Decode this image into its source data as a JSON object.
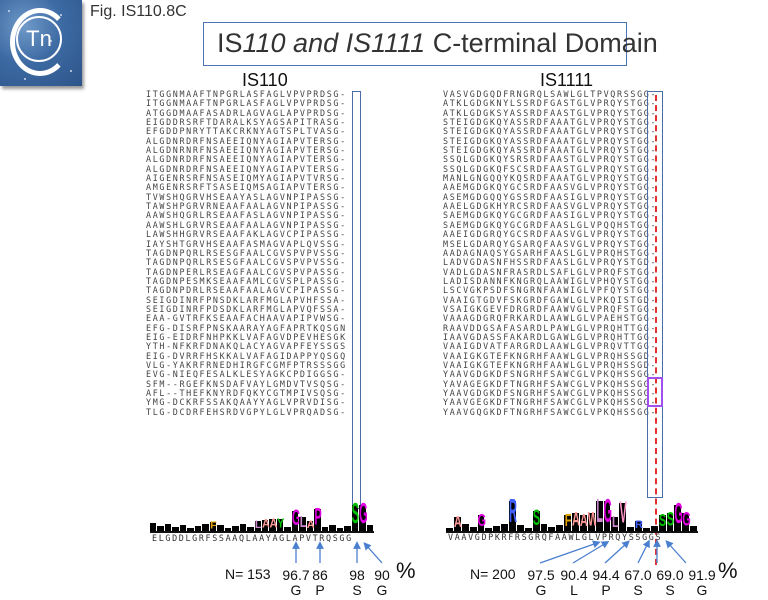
{
  "header": {
    "logo_text": "Tn",
    "figure_label": "Fig. IS110.8C",
    "title_parts": [
      {
        "text": "IS",
        "italic": false
      },
      {
        "text": "110 and IS1111",
        "italic": true
      },
      {
        "text": " C-terminal Domain",
        "italic": false
      }
    ]
  },
  "colors": {
    "box_blue": "#4a6da8",
    "box_purple": "#a24ff0",
    "dash_red": "#e03030",
    "arrow_blue": "#4a7fd0",
    "title_border": "#4a73b8"
  },
  "is110": {
    "title": "IS110",
    "sequences": [
      "ITGGNMAAFTNPGRLASFAGLVPVPRDSG-",
      "ITGGNMAAFTNPGRLASFAGLVPVPRDSG-",
      "ATGGDMAAFASADRLAGVAGLAPVPRDSG-",
      "EIGDDRSRFTDARALKSYAGSAPITRASG-",
      "EFGDDPNRYTTAKCRKNYAGTSPLTVASG-",
      "ALGDNRDRFNSAEEIQNYAGIAPVTERSG-",
      "ALGDNRNRFNSAEEIQNYAGIAPVTERSG-",
      "ALGDNRDRFNSAEEIQNYAGIAPVTERSG-",
      "ALGDNRDRFNSAEEIQNYAGIAPVTERSG-",
      "AIGENRSRFNSASEIQMYAGIAPVTVRSG-",
      "AMGENRSRFTSASEIQMSAGIAPVTERSG-",
      "TVWSHQGRVHSEAAYASLAGVNPIPASSG-",
      "TAWSHPGRVRNEAAFAALAGVNPIPASSG-",
      "AAWSHQGRLRSEAAFASLAGVNPIPASSG-",
      "AAWSHLGRVRSEAAFAALAGVNPIPASSG-",
      "LAWSHHGRVRSEAAFAKLAGVCPIPASSG-",
      "IAYSHTGRVHSEAAFASMAGVAPLQVSSG-",
      "TAGDNPQRLRSESGFAALCGVSPVPVSSG-",
      "TAGDNPQRLRSESGFAALCGVSPVPVSSG-",
      "TAGDNPERLRSEAGFAALCGVSPVPASSG-",
      "TAGDNPESMKSEAAFAMLCGVSPLPASSG-",
      "TAGDNPDRLRSEAAFAALAGVCPIPASSG-",
      "SEIGDINRFPNSDKLARFMGLAPVHFSSA-",
      "SEIGDINRFPDSDKLARFMGLAPVQFSSA-",
      "EAA-GVTRFKSEAAFACHAAVAPIPVWSG-",
      "EFG-DISRFPNSKAARAYAGFAPRTKQSGN",
      "EIG-EIDRFNHPKKLVAFAGVDPEVHESGK",
      "YTH-NFKRFDNAKQLACYAGVAPFEYSSGS",
      "EIG-DVRRFHSKKALVAFAGIDAPPYQSGQ",
      "VLG-YAKRFRNEDHIRGFCGMFPTRSSSGG",
      "EVG-NIEQFESALKLESYAGKCPDIGGSG-",
      "SFM--RGEFKNSDAFVAYLGMDVTVSQSG-",
      "AFL--THEFKNYRDFQKYCGTMPIVSQSG-",
      "YMG-DCKRFSSAKQAAYYAGLVPRVDISG-",
      "TLG-DCDRFEHSRDVGPYLGLVPRQADSG-"
    ],
    "consensus": "ELGDDLGRFSSAAQLAAYAGLAPVTRQSGG",
    "n_label": "N= 153",
    "percent_symbol": "%",
    "conservation": [
      {
        "value": "96.7",
        "residue": "G"
      },
      {
        "value": "86",
        "residue": "P"
      },
      {
        "value": "98",
        "residue": "S"
      },
      {
        "value": "90",
        "residue": "G"
      }
    ],
    "logo_peaks": [
      "E",
      "G",
      "R",
      "K",
      "F",
      "A",
      "A",
      "A",
      "G",
      "L",
      "A",
      "P",
      "S",
      "G"
    ]
  },
  "is1111": {
    "title": "IS1111",
    "sequences": [
      "VASVGDGQDFRNGRQLSAWLGLTPVQRSSGG-",
      "ATKLGDGKNYLSSRDFGASTGLVPRQYSTGG-",
      "ATKLGDGKSYASSRDFAASTGLVPRQYSTGG-",
      "STEIGDGKQYASSRDFAAATGLVPRQYSTGG-",
      "STEIGDGKQYASSRDFAAATGLVPRQYSTGG-",
      "STEIGDGKQYASSRDFAAATGLVPRQYSTGG-",
      "STEIGDGKQYASSRDFAAATGLVPRQYSTGG-",
      "SSQLGDGKQYSRSRDFAASTGLVPRQYSTGG-",
      "SSQLGDGKQFSCSRDFAASTGLVPRQYSTGG-",
      "MANLGNGQQYKQSRDFAAATGLVPRQYSTGG-",
      "AAEMGDGKQYGCSRDFAASVGLVPRQYSTGG-",
      "ASEMGDGQQYGSSRDFAASIGLVPRQYSTGG-",
      "AAELGDGKHYRCSRDFAASVGLVPRQYSTGG-",
      "SAEMGDGKQYGCGRDFAASIGLVPRQYSTGG-",
      "SAEMGDGKQYGCGRDFAASLGLVPQQHSTGG-",
      "AAEIGDGRQYGCSRDFAASVGLVPRQYSTGG-",
      "MSELGDARQYGSARQFAASVGLVPRQYSTGG-",
      "AADAGNAQSYGSARHFAASLGLVPRQHSTGG-",
      "LADVGDASNFHSSRDFAASLGLVPRQYSTGD-",
      "VADLGDASNFRASRDLSAFLGLVPRQFSTGG-",
      "LADISDANNFKNGRQLAAWIGLVPHQYSTGG-",
      "LSCVGKPSDFSNGRNFAAWIGLVPFQYSTGG-",
      "VAAIGTGDVFSKGRDFGAWLGLVPKQISTGD-",
      "VSAIGKGEVFDRGRDFAAWVGLVPRQFSTGG-",
      "VAAAGDGRQFRKARDLAAWLGLVPAEHSTGG-",
      "RAAVDDGSAFASARDLPAWLGLVPRQHTTGG-",
      "IAAVGDASSFAKARDLGAWLGLVPRQHTTGG-",
      "VAAIGDVATFARGRDLAAWLGLVPRQVTTGG-",
      "VAAIGKGTEFKNGRHFAAWLGLVPRQHSSGD-",
      "VAAIGKGTEFKNGRHFAAWLGLVPRQHSSGD-",
      "YAAVGDGKDFSNGRHFSAWCGLVPKQHSSGG-",
      "YAVAGEGKDFTNGRHFSAWCGLVPKQHSSGG-",
      "YAAVGDGKDFSNGRHFSAWCGLVPKQHSSGG-",
      "YAAVGEGKDFTNGRHFSAWCGLVPKQHSSGG-",
      "YAAVGQGKDFTNGRHFSAWCGLVPKQHSSGG-"
    ],
    "consensus": "VAAVGDPKRFRSGRQFAAWLGLVPRQYSSGGS",
    "n_label": "N= 200",
    "percent_symbol": "%",
    "conservation": [
      {
        "value": "97.5",
        "residue": "G"
      },
      {
        "value": "90.4",
        "residue": "L"
      },
      {
        "value": "94.4",
        "residue": "P"
      },
      {
        "value": "67.0",
        "residue": "S"
      },
      {
        "value": "69.0",
        "residue": "S"
      },
      {
        "value": "91.9",
        "residue": "G"
      }
    ],
    "logo_peaks": [
      "A",
      "G",
      "D",
      "F",
      "R",
      "A",
      "A",
      "W",
      "G",
      "L",
      "V",
      "P",
      "S",
      "S",
      "G",
      "G"
    ]
  }
}
